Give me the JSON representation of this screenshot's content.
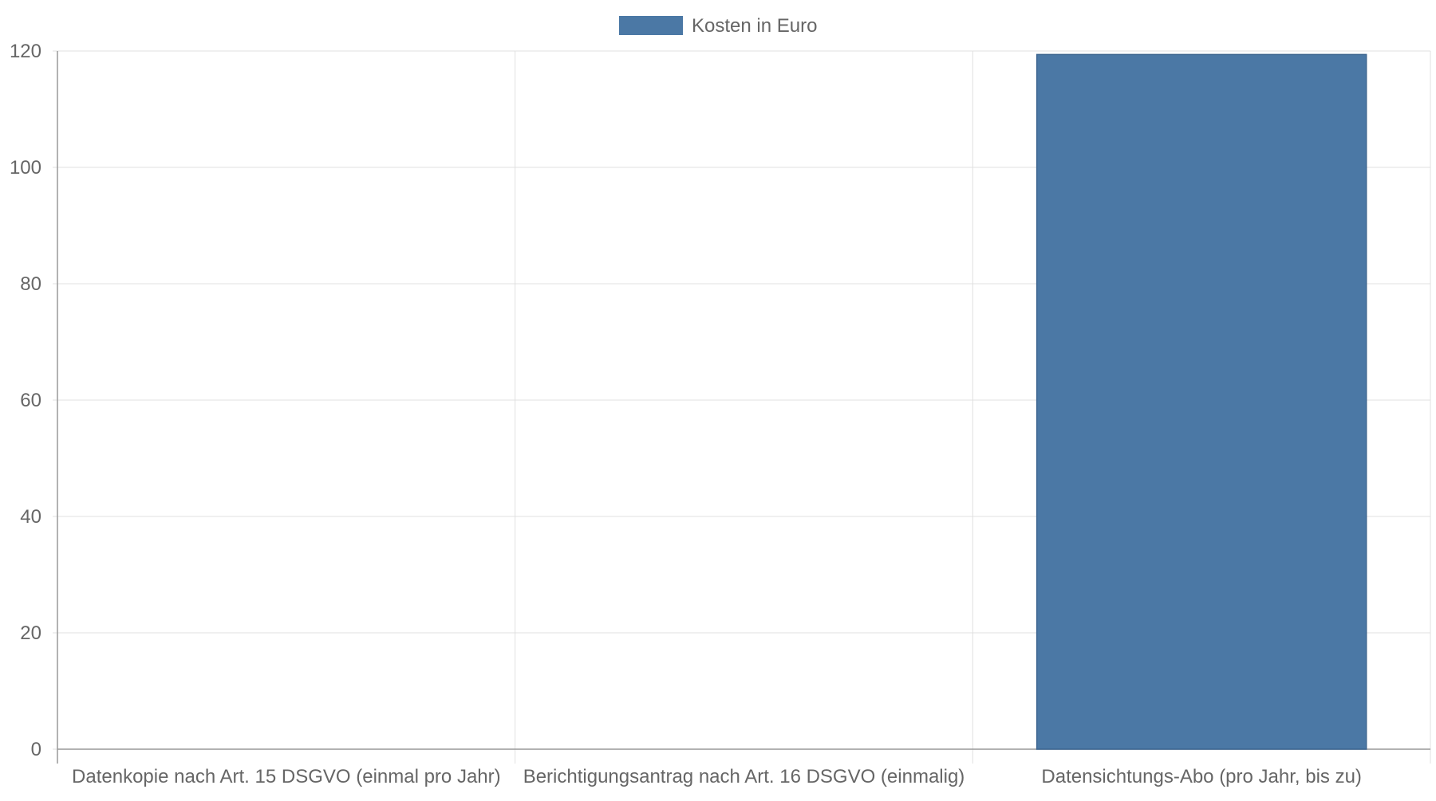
{
  "chart_data": {
    "type": "bar",
    "categories": [
      "Datenkopie nach Art. 15 DSGVO (einmal pro Jahr)",
      "Berichtigungsantrag nach Art. 16 DSGVO (einmalig)",
      "Datensichtungs-Abo (pro Jahr, bis zu)"
    ],
    "series": [
      {
        "name": "Kosten in Euro",
        "values": [
          0,
          0,
          119.4
        ],
        "color": "#4b78a5"
      }
    ],
    "ylim": [
      0,
      120
    ],
    "yticks": [
      0,
      20,
      40,
      60,
      80,
      100,
      120
    ],
    "grid": true,
    "legend": "top-center",
    "colors": {
      "text": "#666666",
      "grid": "#e0e0e0",
      "axis": "#999999",
      "bar": "#4b78a5",
      "bar_border": "#3d6590"
    }
  }
}
